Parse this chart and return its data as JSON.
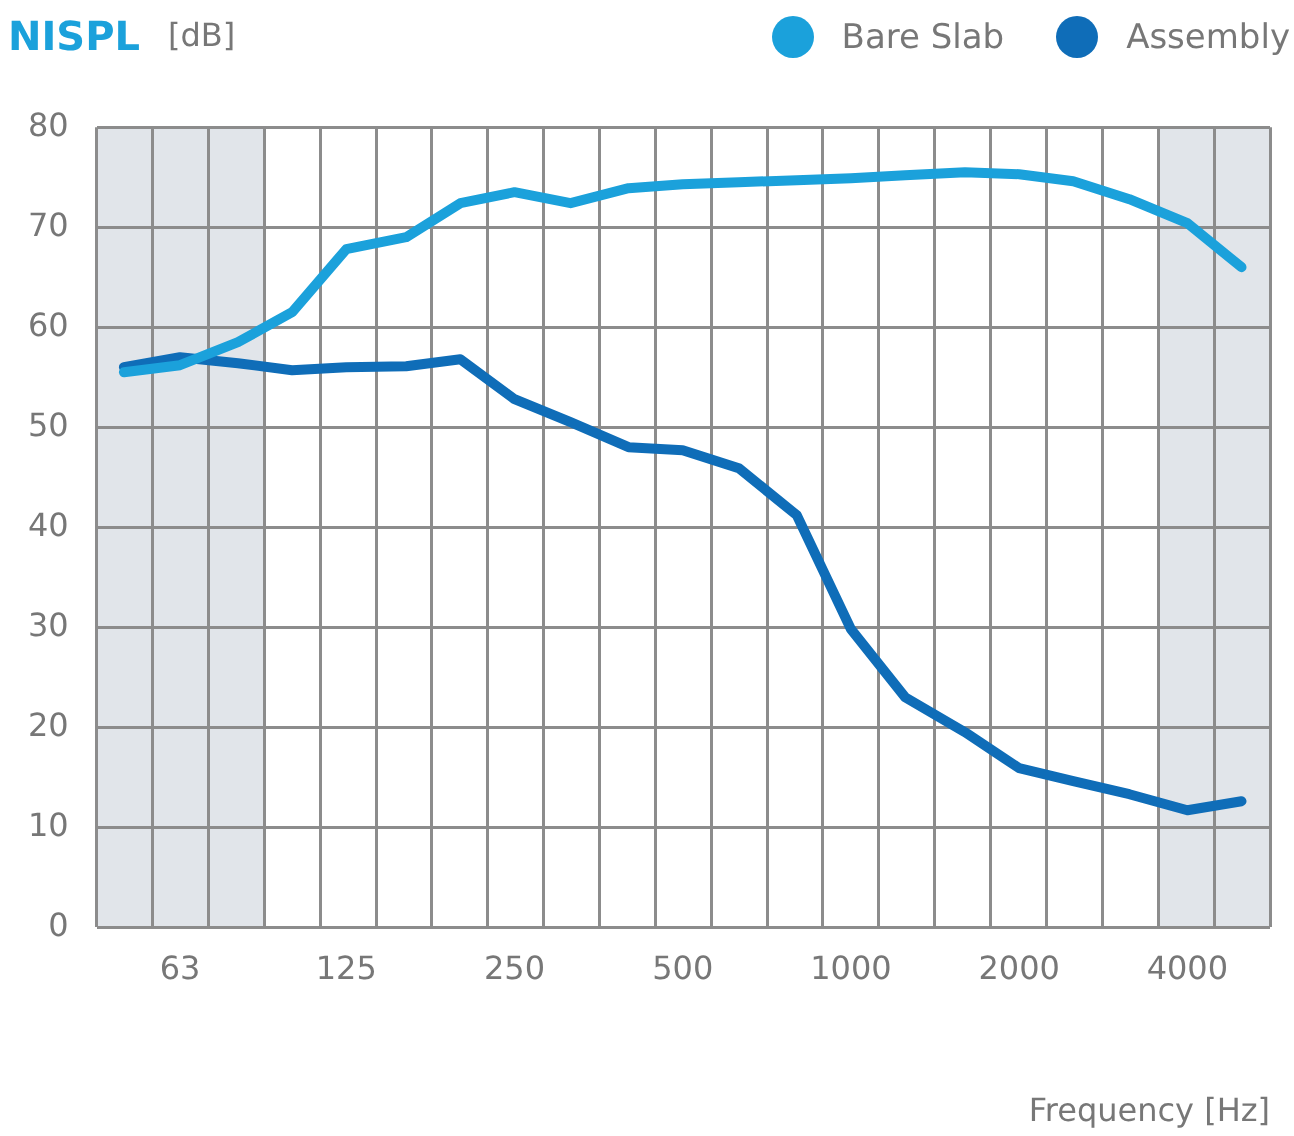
{
  "chart_data": {
    "type": "line",
    "title": "NISPL",
    "ylabel": "[dB]",
    "xlabel": "Frequency [Hz]",
    "x": [
      50,
      63,
      80,
      100,
      125,
      160,
      200,
      250,
      315,
      400,
      500,
      630,
      800,
      1000,
      1250,
      1600,
      2000,
      2500,
      3150,
      4000,
      5000
    ],
    "series": [
      {
        "name": "Bare Slab",
        "color": "#1ba1db",
        "values": [
          55.5,
          56.2,
          58.5,
          61.5,
          67.8,
          69,
          72.4,
          73.5,
          72.4,
          73.9,
          74.3,
          74.5,
          74.7,
          74.9,
          75.2,
          75.5,
          75.3,
          74.6,
          72.8,
          70.4,
          66
        ]
      },
      {
        "name": "Assembly",
        "color": "#0f6db8",
        "values": [
          56,
          57,
          56.4,
          55.7,
          56,
          56.1,
          56.8,
          52.8,
          50.5,
          48,
          47.7,
          45.9,
          41.2,
          29.8,
          23,
          19.5,
          15.9,
          14.6,
          13.3,
          11.7,
          12.6
        ]
      }
    ],
    "log": "x",
    "xlim": [
      44.7,
      5623
    ],
    "xticks": [
      {
        "value": 44.7,
        "label": null
      },
      {
        "value": 56.2,
        "label": null
      },
      63,
      {
        "value": 70.8,
        "label": null
      },
      {
        "value": 89.1,
        "label": null
      },
      {
        "value": 112.2,
        "label": null
      },
      125,
      {
        "value": 141.3,
        "label": null
      },
      {
        "value": 177.8,
        "label": null
      },
      {
        "value": 223.9,
        "label": null
      },
      250,
      {
        "value": 281.8,
        "label": null
      },
      {
        "value": 354.8,
        "label": null
      },
      {
        "value": 446.7,
        "label": null
      },
      500,
      {
        "value": 562.3,
        "label": null
      },
      {
        "value": 707.9,
        "label": null
      },
      {
        "value": 891.3,
        "label": null
      },
      1000,
      {
        "value": 1122,
        "label": null
      },
      {
        "value": 1413,
        "label": null
      },
      {
        "value": 1778,
        "label": null
      },
      2000,
      {
        "value": 2239,
        "label": null
      },
      {
        "value": 2818,
        "label": null
      },
      {
        "value": 3548,
        "label": null
      },
      4000,
      {
        "value": 4467,
        "label": null
      },
      {
        "value": 5623,
        "label": null
      }
    ],
    "ylim": [
      0,
      80
    ],
    "yticks": [
      0,
      10,
      20,
      30,
      40,
      50,
      60,
      70,
      80
    ],
    "bands": [
      {
        "axis": "x",
        "from": 44.7,
        "to": 89.1,
        "color": "#e1e5ea"
      },
      {
        "axis": "x",
        "from": 3548,
        "to": 5623,
        "color": "#e1e5ea"
      }
    ],
    "grid": true,
    "legend": "top right",
    "marker": "none",
    "line_style": "solid"
  }
}
